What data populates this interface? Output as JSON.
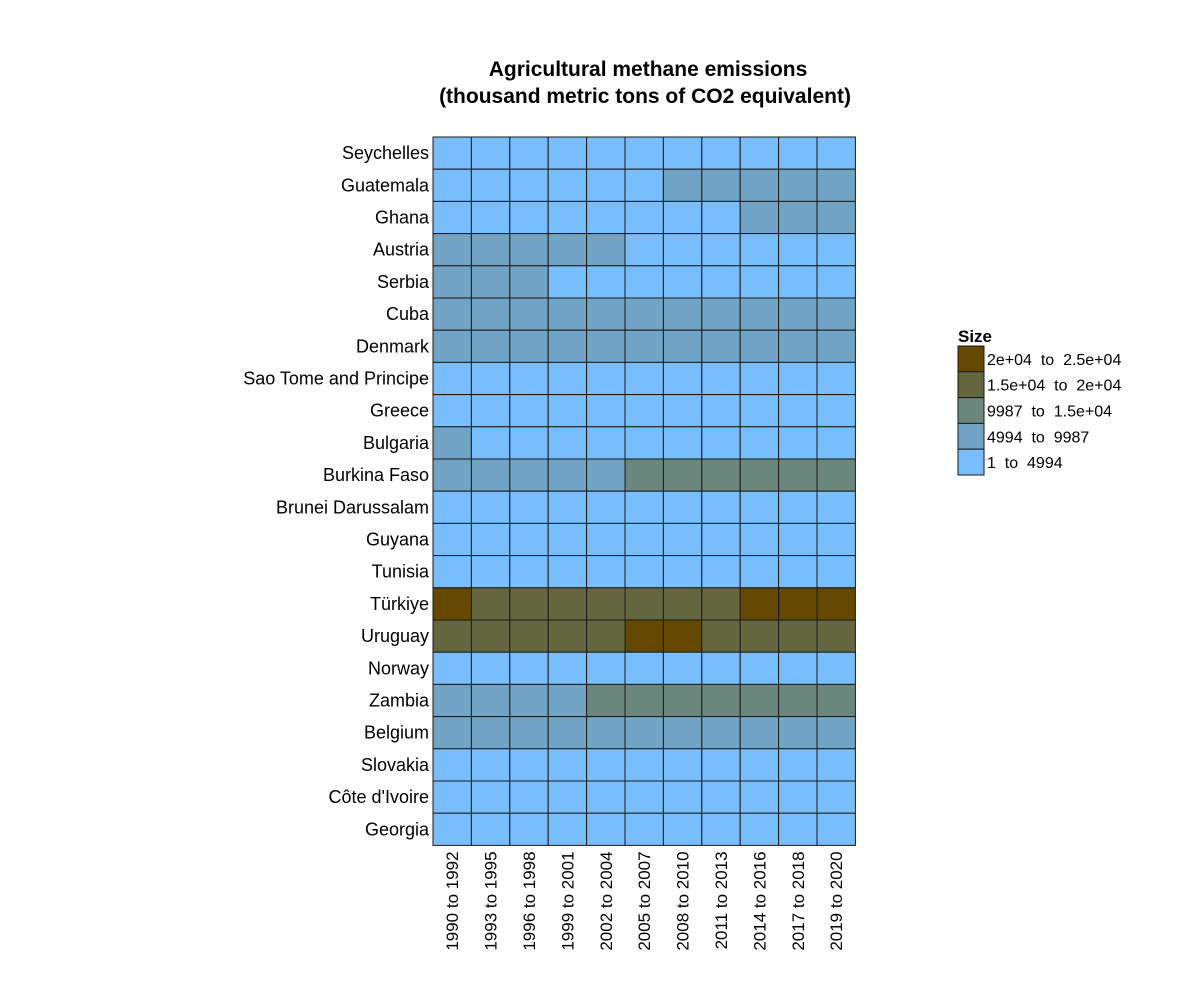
{
  "chart_data": {
    "type": "heatmap",
    "title": [
      "Agricultural methane emissions",
      "(thousand metric tons of CO2 equivalent)"
    ],
    "rows": [
      "Seychelles",
      "Guatemala",
      "Ghana",
      "Austria",
      "Serbia",
      "Cuba",
      "Denmark",
      "Sao Tome and Principe",
      "Greece",
      "Bulgaria",
      "Burkina Faso",
      "Brunei Darussalam",
      "Guyana",
      "Tunisia",
      "Türkiye",
      "Uruguay",
      "Norway",
      "Zambia",
      "Belgium",
      "Slovakia",
      "Côte d'Ivoire",
      "Georgia"
    ],
    "columns": [
      "1990 to 1992",
      "1993 to 1995",
      "1996 to 1998",
      "1999 to 2001",
      "2002 to 2004",
      "2005 to 2007",
      "2008 to 2010",
      "2011 to 2013",
      "2014 to 2016",
      "2017 to 2018",
      "2019 to 2020"
    ],
    "bin_index": [
      [
        0,
        0,
        0,
        0,
        0,
        0,
        0,
        0,
        0,
        0,
        0
      ],
      [
        0,
        0,
        0,
        0,
        0,
        0,
        1,
        1,
        1,
        1,
        1
      ],
      [
        0,
        0,
        0,
        0,
        0,
        0,
        0,
        0,
        1,
        1,
        1
      ],
      [
        1,
        1,
        1,
        1,
        1,
        0,
        0,
        0,
        0,
        0,
        0
      ],
      [
        1,
        1,
        1,
        0,
        0,
        0,
        0,
        0,
        0,
        0,
        0
      ],
      [
        1,
        1,
        1,
        1,
        1,
        1,
        1,
        1,
        1,
        1,
        1
      ],
      [
        1,
        1,
        1,
        1,
        1,
        1,
        1,
        1,
        1,
        1,
        1
      ],
      [
        0,
        0,
        0,
        0,
        0,
        0,
        0,
        0,
        0,
        0,
        0
      ],
      [
        0,
        0,
        0,
        0,
        0,
        0,
        0,
        0,
        0,
        0,
        0
      ],
      [
        1,
        0,
        0,
        0,
        0,
        0,
        0,
        0,
        0,
        0,
        0
      ],
      [
        1,
        1,
        1,
        1,
        1,
        2,
        2,
        2,
        2,
        2,
        2
      ],
      [
        0,
        0,
        0,
        0,
        0,
        0,
        0,
        0,
        0,
        0,
        0
      ],
      [
        0,
        0,
        0,
        0,
        0,
        0,
        0,
        0,
        0,
        0,
        0
      ],
      [
        0,
        0,
        0,
        0,
        0,
        0,
        0,
        0,
        0,
        0,
        0
      ],
      [
        4,
        3,
        3,
        3,
        3,
        3,
        3,
        3,
        4,
        4,
        4
      ],
      [
        3,
        3,
        3,
        3,
        3,
        4,
        4,
        3,
        3,
        3,
        3
      ],
      [
        0,
        0,
        0,
        0,
        0,
        0,
        0,
        0,
        0,
        0,
        0
      ],
      [
        1,
        1,
        1,
        1,
        2,
        2,
        2,
        2,
        2,
        2,
        2
      ],
      [
        1,
        1,
        1,
        1,
        1,
        1,
        1,
        1,
        1,
        1,
        1
      ],
      [
        0,
        0,
        0,
        0,
        0,
        0,
        0,
        0,
        0,
        0,
        0
      ],
      [
        0,
        0,
        0,
        0,
        0,
        0,
        0,
        0,
        0,
        0,
        0
      ],
      [
        0,
        0,
        0,
        0,
        0,
        0,
        0,
        0,
        0,
        0,
        0
      ]
    ],
    "legend": {
      "title": "Size",
      "placement": "right",
      "bins": [
        {
          "label": "1  to  4994",
          "color": "#78bdfc"
        },
        {
          "label": "4994  to  9987",
          "color": "#70a3c4"
        },
        {
          "label": "9987  to  1.5e+04",
          "color": "#6b877d"
        },
        {
          "label": "1.5e+04  to  2e+04",
          "color": "#646640"
        },
        {
          "label": "2e+04  to  2.5e+04",
          "color": "#644800"
        }
      ]
    }
  }
}
